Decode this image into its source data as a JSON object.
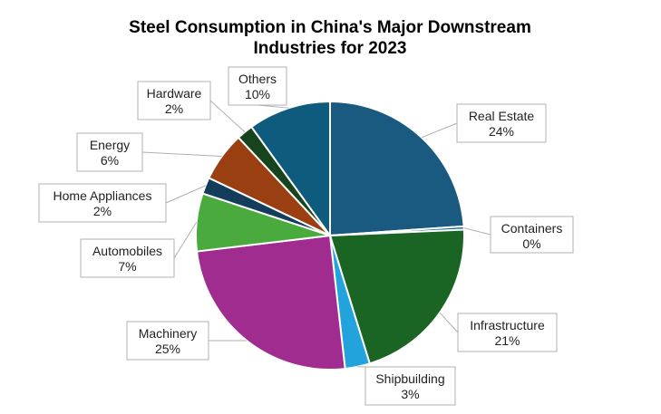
{
  "chart_data": {
    "type": "pie",
    "title_lines": [
      "Steel Consumption in China's Major Downstream",
      "Industries for 2023"
    ],
    "start_angle_deg": 0,
    "direction": "clockwise",
    "slices": [
      {
        "label": "Real Estate",
        "value": 24,
        "value_label": "24%",
        "color": "#1a5a80"
      },
      {
        "label": "Containers",
        "value": 0.4,
        "value_label": "0%",
        "color": "#1a6f94"
      },
      {
        "label": "Infrastructure",
        "value": 21,
        "value_label": "21%",
        "color": "#1a6424"
      },
      {
        "label": "Shipbuilding",
        "value": 3,
        "value_label": "3%",
        "color": "#23a3dc"
      },
      {
        "label": "Machinery",
        "value": 25,
        "value_label": "25%",
        "color": "#a02c8f"
      },
      {
        "label": "Automobiles",
        "value": 7,
        "value_label": "7%",
        "color": "#4aaa3d"
      },
      {
        "label": "Home Appliances",
        "value": 2,
        "value_label": "2%",
        "color": "#143d5c"
      },
      {
        "label": "Energy",
        "value": 6,
        "value_label": "6%",
        "color": "#9a3f12"
      },
      {
        "label": "Hardware",
        "value": 2,
        "value_label": "2%",
        "color": "#17431d"
      },
      {
        "label": "Others",
        "value": 10,
        "value_label": "10%",
        "color": "#0f5b7e"
      }
    ]
  }
}
